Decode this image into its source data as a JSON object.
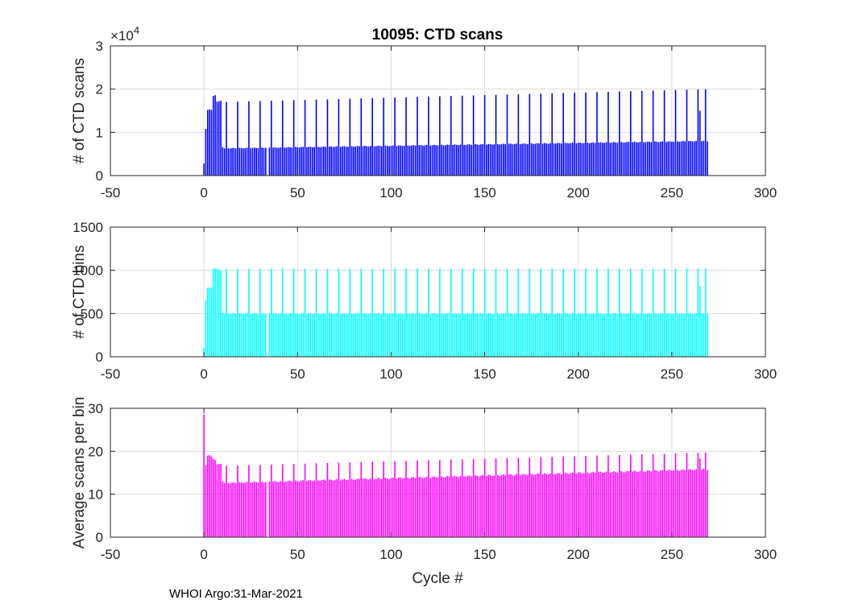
{
  "figure": {
    "title": "10095: CTD scans",
    "xlabel": "Cycle #",
    "footer": "WHOI Argo:31-Mar-2021"
  },
  "chart_data": [
    {
      "type": "bar",
      "title": "10095: CTD scans",
      "ylabel": "# of CTD scans",
      "xlabel": "",
      "xlim": [
        -50,
        300
      ],
      "ylim": [
        0,
        30000
      ],
      "xticks": [
        -50,
        0,
        50,
        100,
        150,
        200,
        250,
        300
      ],
      "yticks": [
        0,
        10000,
        20000,
        30000
      ],
      "ytick_labels": [
        "0",
        "1",
        "2",
        "3"
      ],
      "y_exponent_label": "×10",
      "y_exponent": "4",
      "grid": true,
      "color": "#0000ff",
      "series": [
        {
          "generator": "cycles",
          "x_start": 0,
          "x_end": 269,
          "early": [
            [
              0,
              2800
            ],
            [
              1,
              10800
            ],
            [
              2,
              15200
            ],
            [
              3,
              15300
            ],
            [
              4,
              15200
            ],
            [
              5,
              18400
            ],
            [
              6,
              18600
            ],
            [
              7,
              17100
            ],
            [
              8,
              17200
            ],
            [
              9,
              17300
            ],
            [
              10,
              6600
            ]
          ],
          "base_start": 6300,
          "base_end": 8000,
          "spike_every": 6,
          "spike_offset": 0,
          "spike_start": 17000,
          "spike_end": 20000,
          "gaps": [
            34
          ],
          "special": [
            [
              265,
              15000
            ],
            [
              268,
              20000
            ]
          ]
        }
      ]
    },
    {
      "type": "bar",
      "title": "",
      "ylabel": "# of CTD bins",
      "xlabel": "",
      "xlim": [
        -50,
        300
      ],
      "ylim": [
        0,
        1500
      ],
      "xticks": [
        -50,
        0,
        50,
        100,
        150,
        200,
        250,
        300
      ],
      "yticks": [
        0,
        500,
        1000,
        1500
      ],
      "ytick_labels": [
        "0",
        "500",
        "1000",
        "1500"
      ],
      "grid": true,
      "color": "#00ffff",
      "series": [
        {
          "generator": "cycles",
          "x_start": 0,
          "x_end": 269,
          "early": [
            [
              0,
              100
            ],
            [
              1,
              650
            ],
            [
              2,
              800
            ],
            [
              3,
              800
            ],
            [
              4,
              800
            ],
            [
              5,
              1020
            ],
            [
              6,
              1020
            ],
            [
              7,
              1020
            ],
            [
              8,
              1010
            ],
            [
              9,
              1000
            ],
            [
              10,
              510
            ]
          ],
          "base_start": 500,
          "base_end": 500,
          "spike_every": 6,
          "spike_offset": 0,
          "spike_start": 1020,
          "spike_end": 1020,
          "gaps": [
            34
          ],
          "special": [
            [
              265,
              820
            ],
            [
              268,
              1020
            ]
          ]
        }
      ]
    },
    {
      "type": "bar",
      "title": "",
      "ylabel": "Average scans per bin",
      "xlabel": "Cycle #",
      "xlim": [
        -50,
        300
      ],
      "ylim": [
        0,
        30
      ],
      "xticks": [
        -50,
        0,
        50,
        100,
        150,
        200,
        250,
        300
      ],
      "yticks": [
        0,
        10,
        20,
        30
      ],
      "ytick_labels": [
        "0",
        "10",
        "20",
        "30"
      ],
      "grid": true,
      "color": "#ff00ff",
      "series": [
        {
          "generator": "cycles",
          "x_start": 0,
          "x_end": 269,
          "early": [
            [
              0,
              28.5
            ],
            [
              1,
              16.8
            ],
            [
              2,
              19.0
            ],
            [
              3,
              19.1
            ],
            [
              4,
              18.8
            ],
            [
              5,
              18.2
            ],
            [
              6,
              18.0
            ],
            [
              7,
              17.0
            ],
            [
              8,
              17.0
            ],
            [
              9,
              17.1
            ],
            [
              10,
              13.0
            ]
          ],
          "base_start": 12.6,
          "base_end": 15.8,
          "spike_every": 6,
          "spike_offset": 0,
          "spike_start": 16.6,
          "spike_end": 19.7,
          "gaps": [
            34
          ],
          "special": [
            [
              265,
              18.3
            ],
            [
              268,
              19.7
            ]
          ]
        }
      ]
    }
  ]
}
